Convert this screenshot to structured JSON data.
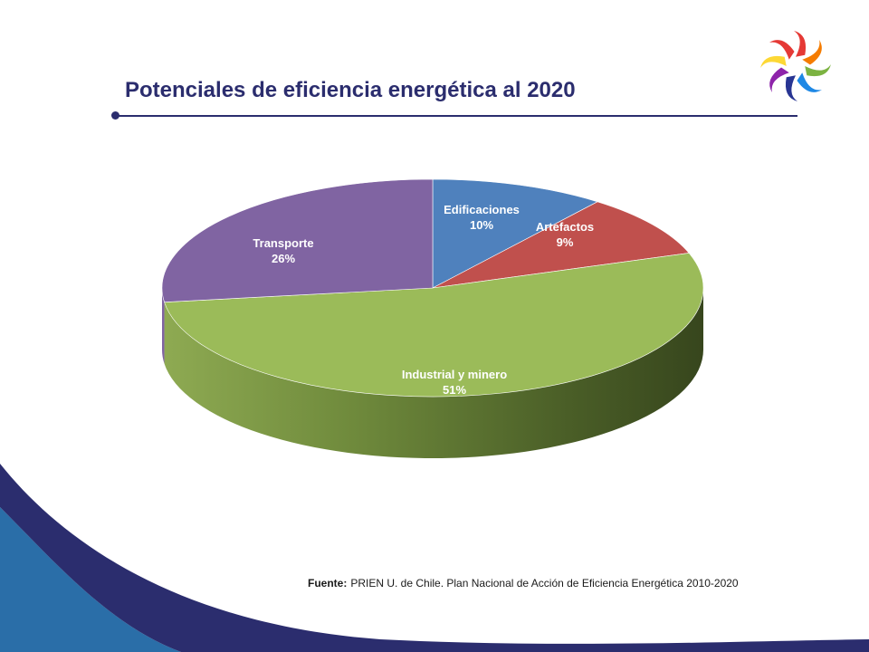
{
  "slide": {
    "title": "Potenciales de eficiencia energética al 2020",
    "source_label": "Fuente:",
    "source_text": "PRIEN U. de Chile. Plan Nacional de Acción de Eficiencia Energética 2010-2020"
  },
  "logo": {
    "icon": "pinwheel-logo-icon"
  },
  "chart_data": {
    "type": "pie",
    "style": "3d",
    "start": "top, clockwise",
    "slices": [
      {
        "label": "Edificaciones",
        "value": 10,
        "percent_label": "10%",
        "color": "#4f81bd",
        "label_color": "#ffffff"
      },
      {
        "label": "Artefactos",
        "value": 9,
        "percent_label": "9%",
        "color": "#c0504d",
        "label_color": "#ffffff"
      },
      {
        "label": "Industrial y minero",
        "value": 51,
        "percent_label": "51%",
        "color": "#9bbb59",
        "label_color": "#ffffff"
      },
      {
        "label": "Transporte",
        "value": 26,
        "percent_label": "26%",
        "color": "#8064a2",
        "label_color": "#ffffff"
      }
    ]
  },
  "colors": {
    "title": "#2b2d6e",
    "band_dark": "#2b2d6e",
    "band_light": "#2a6ea8"
  }
}
